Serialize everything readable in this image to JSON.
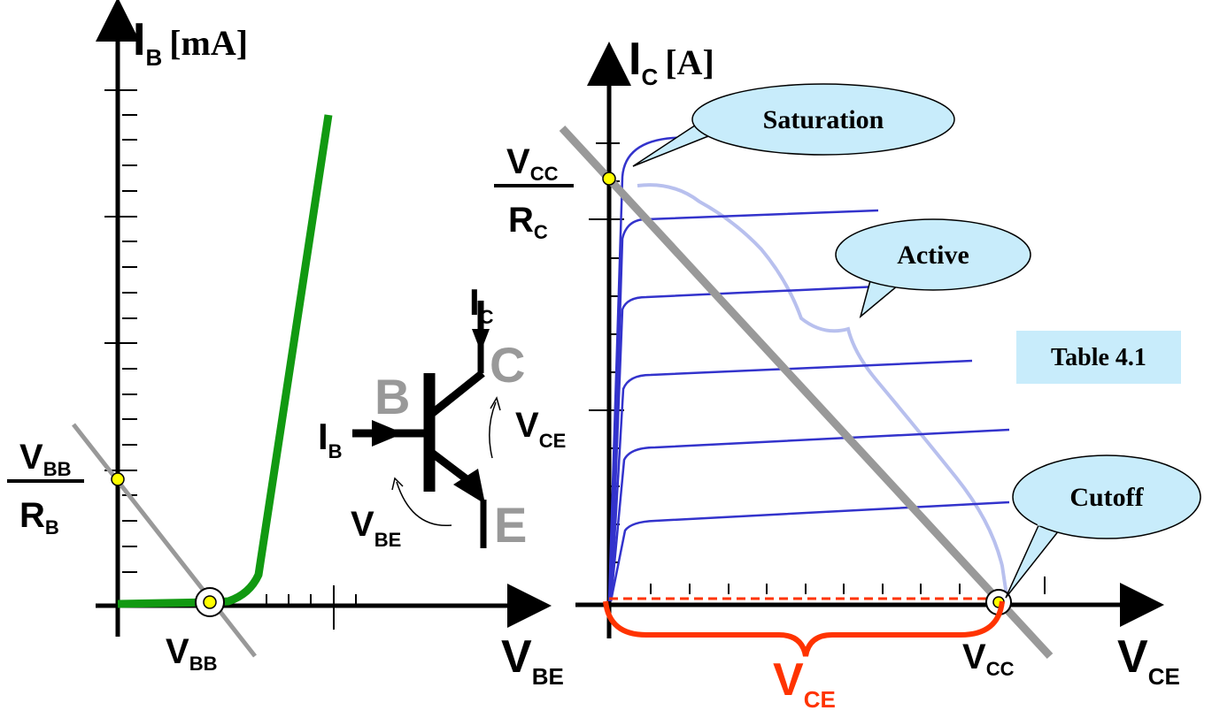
{
  "left_plot": {
    "y_axis_label": {
      "main": "I",
      "sub": "B",
      "unit": "[mA]"
    },
    "x_axis_label": {
      "main": "V",
      "sub": "BE"
    },
    "intercept_y": {
      "num_main": "V",
      "num_sub": "BB",
      "den_main": "R",
      "den_sub": "B"
    },
    "intercept_x": {
      "main": "V",
      "sub": "BB"
    }
  },
  "transistor": {
    "base": "B",
    "collector": "C",
    "emitter": "E",
    "ib": {
      "main": "I",
      "sub": "B"
    },
    "ic": {
      "main": "I",
      "sub": "C"
    },
    "vce": {
      "main": "V",
      "sub": "CE"
    },
    "vbe": {
      "main": "V",
      "sub": "BE"
    }
  },
  "right_plot": {
    "y_axis_label": {
      "main": "I",
      "sub": "C",
      "unit": "[A]"
    },
    "x_axis_label": {
      "main": "V",
      "sub": "CE"
    },
    "intercept_y": {
      "num_main": "V",
      "num_sub": "CC",
      "den_main": "R",
      "den_sub": "C"
    },
    "intercept_x": {
      "main": "V",
      "sub": "CC"
    },
    "brace_label": {
      "main": "V",
      "sub": "CE"
    }
  },
  "callouts": {
    "saturation": "Saturation",
    "active": "Active",
    "cutoff": "Cutoff"
  },
  "table_ref": "Table 4.1",
  "colors": {
    "axis": "#000000",
    "input_curve": "#119911",
    "output_curves": "#3333cc",
    "load_line": "#999999",
    "region_outline": "#b8c0ee",
    "brace": "#ff3300",
    "callout_fill": "#c8ecfb",
    "point_fill": "#ffff00",
    "label_gray": "#999999"
  }
}
